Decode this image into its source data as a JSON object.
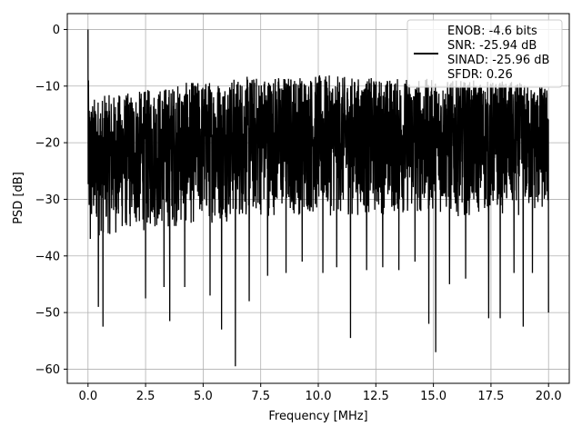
{
  "chart_data": {
    "type": "line",
    "title": "",
    "xlabel": "Frequency [MHz]",
    "ylabel": "PSD [dB]",
    "xlim": [
      -0.9,
      20.9
    ],
    "ylim": [
      -62.5,
      2.8
    ],
    "x_ticks": [
      0.0,
      2.5,
      5.0,
      7.5,
      10.0,
      12.5,
      15.0,
      17.5,
      20.0
    ],
    "x_tick_labels": [
      "0.0",
      "2.5",
      "5.0",
      "7.5",
      "10.0",
      "12.5",
      "15.0",
      "17.5",
      "20.0"
    ],
    "y_ticks": [
      0,
      -10,
      -20,
      -30,
      -40,
      -50,
      -60
    ],
    "y_tick_labels": [
      "0",
      "−10",
      "−20",
      "−30",
      "−40",
      "−50",
      "−60"
    ],
    "grid": true,
    "legend_placement": "top-right",
    "line_color": "#000000",
    "series": [
      {
        "name": "ENOB: -4.6 bits\nSNR: -25.94 dB\nSINAD: -25.96 dB\nSFDR: 0.26",
        "legend_lines": [
          "ENOB: -4.6 bits",
          "SNR: -25.94 dB",
          "SINAD: -25.96 dB",
          "SFDR: 0.26"
        ],
        "x_range": [
          0.0,
          20.0
        ],
        "envelope_x": [
          0,
          2,
          4,
          6,
          8,
          10,
          12,
          14,
          16,
          18,
          20
        ],
        "upper_envelope": [
          -12,
          -11,
          -9.5,
          -8.5,
          -8,
          -8,
          -8.5,
          -8.5,
          -9,
          -9,
          -10
        ],
        "lower_envelope": [
          -37,
          -36,
          -35,
          -34,
          -33,
          -33,
          -33,
          -33,
          -33,
          -33,
          -33
        ],
        "peaks": [
          {
            "x": 0.0,
            "y": 0
          },
          {
            "x": 0.02,
            "y": -9
          },
          {
            "x": 0.05,
            "y": -31
          },
          {
            "x": 0.1,
            "y": -37
          },
          {
            "x": 0.45,
            "y": -49
          },
          {
            "x": 0.65,
            "y": -52.5
          },
          {
            "x": 2.5,
            "y": -47.5
          },
          {
            "x": 3.3,
            "y": -45.5
          },
          {
            "x": 3.55,
            "y": -51.5
          },
          {
            "x": 4.2,
            "y": -45.5
          },
          {
            "x": 5.3,
            "y": -47
          },
          {
            "x": 5.8,
            "y": -53
          },
          {
            "x": 6.4,
            "y": -59.5
          },
          {
            "x": 7.0,
            "y": -48
          },
          {
            "x": 7.8,
            "y": -43.5
          },
          {
            "x": 8.6,
            "y": -43
          },
          {
            "x": 9.3,
            "y": -41
          },
          {
            "x": 10.2,
            "y": -43
          },
          {
            "x": 10.8,
            "y": -42
          },
          {
            "x": 11.4,
            "y": -54.5
          },
          {
            "x": 12.1,
            "y": -42.5
          },
          {
            "x": 12.8,
            "y": -42
          },
          {
            "x": 13.5,
            "y": -42.5
          },
          {
            "x": 14.2,
            "y": -41
          },
          {
            "x": 14.8,
            "y": -52
          },
          {
            "x": 15.1,
            "y": -57
          },
          {
            "x": 15.7,
            "y": -45
          },
          {
            "x": 16.4,
            "y": -44
          },
          {
            "x": 17.4,
            "y": -51
          },
          {
            "x": 17.9,
            "y": -51
          },
          {
            "x": 18.5,
            "y": -43
          },
          {
            "x": 18.9,
            "y": -52.5
          },
          {
            "x": 19.3,
            "y": -43
          },
          {
            "x": 20.0,
            "y": -50
          }
        ]
      }
    ]
  }
}
